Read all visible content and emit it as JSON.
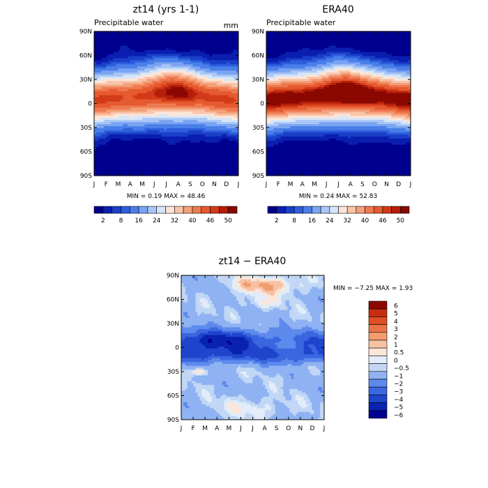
{
  "chart_data": [
    {
      "type": "heatmap",
      "title": "zt14 (yrs 1-1)",
      "subtitle": "Precipitable water",
      "units": "mm",
      "x_ticks": [
        "J",
        "F",
        "M",
        "A",
        "M",
        "J",
        "J",
        "A",
        "S",
        "O",
        "N",
        "D",
        "J"
      ],
      "y_ticks": [
        "90N",
        "60N",
        "30N",
        "0",
        "30S",
        "60S",
        "90S"
      ],
      "min_label": "MIN =    0.19 MAX =   48.46",
      "min": 0.19,
      "max": 48.46,
      "colorbar_ticks": [
        "2",
        "8",
        "16",
        "24",
        "32",
        "40",
        "46",
        "50"
      ],
      "colorbar_levels": [
        2,
        4,
        6,
        8,
        12,
        16,
        20,
        24,
        28,
        32,
        36,
        40,
        44,
        46,
        48,
        50
      ]
    },
    {
      "type": "heatmap",
      "title": "ERA40",
      "subtitle": "Precipitable water",
      "x_ticks": [
        "J",
        "F",
        "M",
        "A",
        "M",
        "J",
        "J",
        "A",
        "S",
        "O",
        "N",
        "D",
        "J"
      ],
      "y_ticks": [
        "90N",
        "60N",
        "30N",
        "0",
        "30S",
        "60S",
        "90S"
      ],
      "min_label": "MIN =    0.24 MAX =   52.83",
      "min": 0.24,
      "max": 52.83,
      "colorbar_ticks": [
        "2",
        "8",
        "16",
        "24",
        "32",
        "40",
        "46",
        "50"
      ],
      "colorbar_levels": [
        2,
        4,
        6,
        8,
        12,
        16,
        20,
        24,
        28,
        32,
        36,
        40,
        44,
        46,
        48,
        50
      ]
    },
    {
      "type": "heatmap",
      "title": "zt14 − ERA40",
      "x_ticks": [
        "J",
        "F",
        "M",
        "A",
        "M",
        "J",
        "J",
        "A",
        "S",
        "O",
        "N",
        "D",
        "J"
      ],
      "y_ticks": [
        "90N",
        "60N",
        "30N",
        "0",
        "30S",
        "60S",
        "90S"
      ],
      "min_label": "MIN =   −7.25 MAX =    1.93",
      "min": -7.25,
      "max": 1.93,
      "colorbar_labels": [
        "6",
        "5",
        "4",
        "3",
        "2",
        "1",
        "0.5",
        "0",
        "−0.5",
        "−1",
        "−2",
        "−3",
        "−4",
        "−5",
        "−6"
      ],
      "colorbar_levels": [
        -6,
        -5,
        -4,
        -3,
        -2,
        -1,
        -0.5,
        0,
        0.5,
        1,
        2,
        3,
        4,
        5,
        6
      ]
    }
  ],
  "colors": {
    "seq_palette": [
      "#00008e",
      "#0a1fb0",
      "#1a3fc8",
      "#2d5fdc",
      "#4a7fea",
      "#7aa4f2",
      "#a9c6f6",
      "#d6e6f8",
      "#fde6d8",
      "#f9c5aa",
      "#f4a07a",
      "#ef7a50",
      "#e65a30",
      "#d23a18",
      "#b51e0a",
      "#8a0800"
    ],
    "diff_palette": [
      "#00008e",
      "#0a22b0",
      "#1f45cc",
      "#3a66e0",
      "#5d8aec",
      "#8fb2f2",
      "#c1d7f5",
      "#e2ecfa",
      "#fbe6d8",
      "#f7c2a4",
      "#f29c70",
      "#eb7446",
      "#df4f25",
      "#c72e10",
      "#8a0800"
    ]
  }
}
